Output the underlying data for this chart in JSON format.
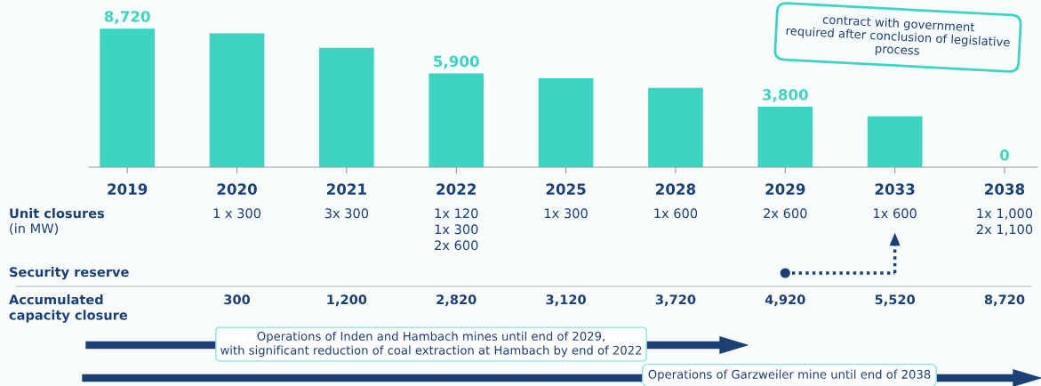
{
  "chart_data": {
    "type": "bar",
    "categories": [
      "2019",
      "2020",
      "2021",
      "2022",
      "2025",
      "2028",
      "2029",
      "2033",
      "2038"
    ],
    "values": [
      8720,
      8420,
      7520,
      5900,
      5600,
      5000,
      3800,
      3200,
      0
    ],
    "value_labels": [
      "8,720",
      null,
      null,
      "5,900",
      null,
      null,
      "3,800",
      null,
      "0"
    ],
    "color": "#3dd5c0",
    "ylim": [
      0,
      10400
    ],
    "tick_labels": "x",
    "grid": false,
    "legend": false,
    "annotations": [
      "Unit closures",
      "(in MW)",
      "Security reserve",
      "Accumulated\ncapacity closure",
      "1 x 300",
      "3x 300",
      "1x 120\n1x 300\n2x 600",
      "1x 300",
      "1x 600",
      "2x 600",
      "1x 600",
      "1x 1,000\n2x 1,100",
      "300",
      "1,200",
      "2,820",
      "3,120",
      "3,720",
      "4,920",
      "5,520",
      "8,720",
      "Operations of Inden and Hambach mines until end of 2029,\nwith significant reduction of coal extraction at Hambach by end of 2022",
      "Operations of Garzweiler mine until end of 2038",
      "contract with government\nrequired after conclusion of legislative\nprocess"
    ]
  }
}
